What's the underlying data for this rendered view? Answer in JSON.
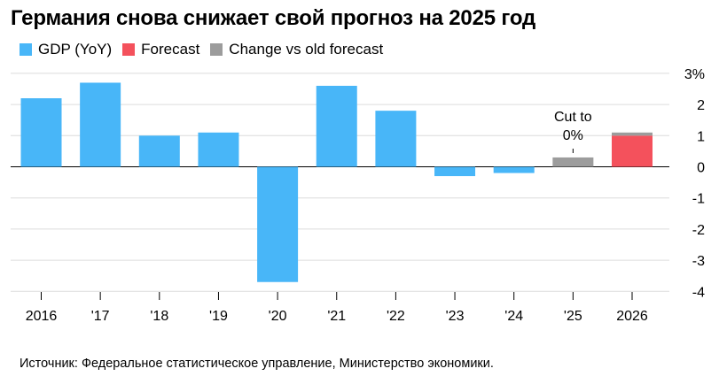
{
  "header": {
    "title": "Германия снова снижает свой прогноз на 2025 год"
  },
  "legend": {
    "items": [
      {
        "label": "GDP (YoY)",
        "color": "#48b6f8"
      },
      {
        "label": "Forecast",
        "color": "#f4515c"
      },
      {
        "label": "Change vs old forecast",
        "color": "#9c9c9c"
      }
    ]
  },
  "chart_data": {
    "type": "bar",
    "categories": [
      "2016",
      "'17",
      "'18",
      "'19",
      "'20",
      "'21",
      "'22",
      "'23",
      "'24",
      "'25",
      "2026"
    ],
    "series": [
      {
        "name": "GDP (YoY)",
        "color": "#48b6f8",
        "values": [
          2.2,
          2.7,
          1.0,
          1.1,
          -3.7,
          2.6,
          1.8,
          -0.3,
          -0.2,
          null,
          null
        ]
      },
      {
        "name": "Forecast",
        "color": "#f4515c",
        "values": [
          null,
          null,
          null,
          null,
          null,
          null,
          null,
          null,
          null,
          0.0,
          1.0
        ]
      },
      {
        "name": "Change vs old forecast",
        "color": "#9c9c9c",
        "values": [
          null,
          null,
          null,
          null,
          null,
          null,
          null,
          null,
          null,
          0.3,
          0.1
        ]
      }
    ],
    "y_ticks": [
      "3%",
      "2",
      "1",
      "0",
      "-1",
      "-2",
      "-3",
      "-4"
    ],
    "ylim": [
      -4,
      3
    ],
    "annotation": {
      "category": "'25",
      "lines": [
        "Cut to",
        "0%"
      ]
    },
    "title": "Германия снова снижает свой прогноз на 2025 год",
    "xlabel": "",
    "ylabel": ""
  },
  "footer": {
    "source": "Источник: Федеральное статистическое управление, Министерство экономики."
  }
}
